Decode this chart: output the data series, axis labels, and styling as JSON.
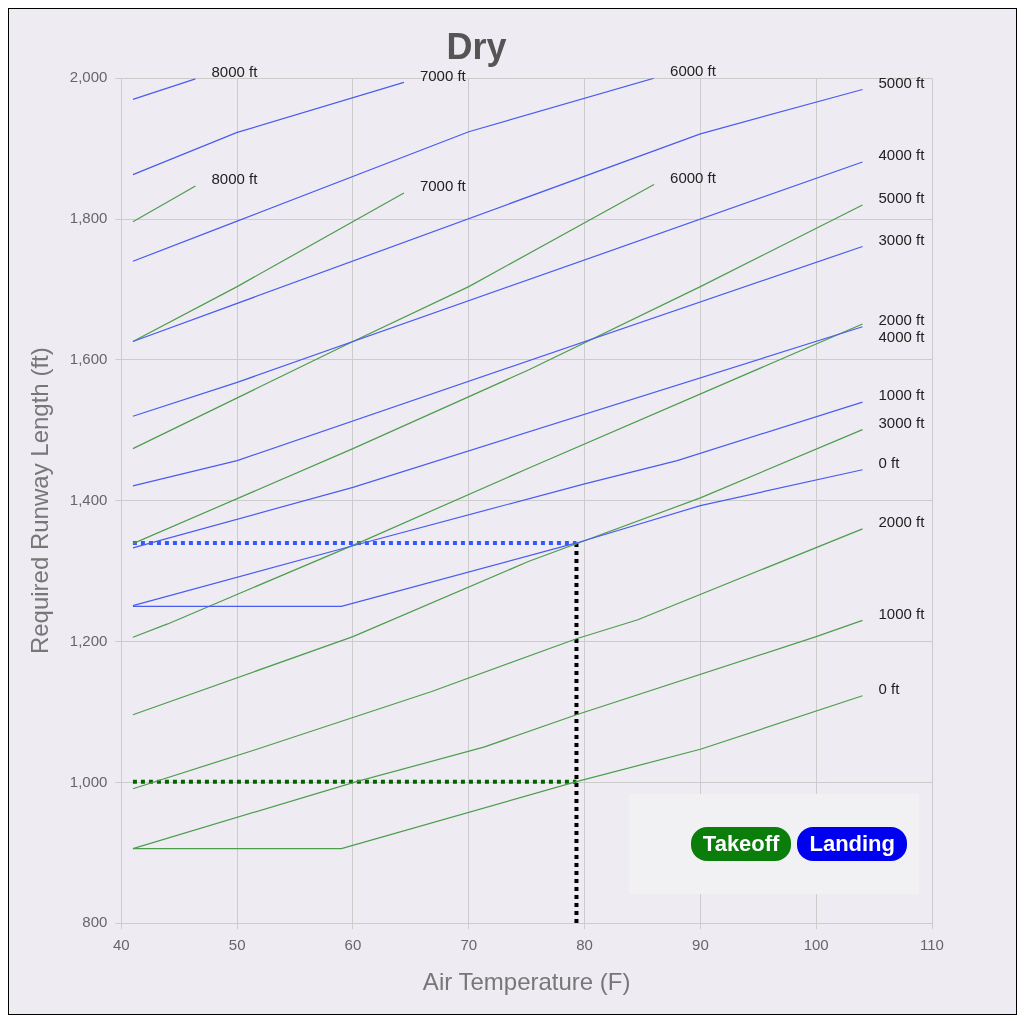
{
  "chart_data": {
    "type": "line",
    "title": "Dry",
    "xlabel": "Air Temperature (F)",
    "ylabel": "Required Runway Length (ft)",
    "xlim": [
      40,
      110
    ],
    "xticks": [
      40,
      50,
      60,
      70,
      80,
      90,
      100,
      110
    ],
    "ylim": [
      800,
      2000
    ],
    "yticks": [
      800,
      {
        "value": 1000,
        "label": "1,000"
      },
      {
        "value": 1200,
        "label": "1,200"
      },
      {
        "value": 1400,
        "label": "1,400"
      },
      {
        "value": 1600,
        "label": "1,600"
      },
      {
        "value": 1800,
        "label": "1,800"
      },
      {
        "value": 2000,
        "label": "2,000"
      }
    ],
    "grid": true,
    "line_style": "solid",
    "marker": "none",
    "annotations": [
      "Takeoff",
      "Landing"
    ],
    "series": [
      {
        "name": "8000 ft",
        "color": "#4a5cf0",
        "x": [
          41,
          46.4
        ],
        "values": [
          1970,
          1999
        ]
      },
      {
        "name": "7000 ft",
        "color": "#4a5cf0",
        "x": [
          41,
          50,
          64.4
        ],
        "values": [
          1863,
          1923,
          1994
        ]
      },
      {
        "name": "6000 ft",
        "color": "#4a5cf0",
        "x": [
          41,
          50,
          70,
          86
        ],
        "values": [
          1740,
          1797,
          1924,
          2000
        ]
      },
      {
        "name": "5000 ft",
        "color": "#4a5cf0",
        "x": [
          41,
          90,
          104
        ],
        "values": [
          1626,
          1921,
          1984
        ]
      },
      {
        "name": "4000 ft",
        "color": "#4a5cf0",
        "x": [
          41,
          50,
          104
        ],
        "values": [
          1520,
          1568,
          1881
        ]
      },
      {
        "name": "3000 ft",
        "color": "#4a5cf0",
        "x": [
          41,
          50,
          104
        ],
        "values": [
          1421,
          1457,
          1761
        ]
      },
      {
        "name": "2000 ft",
        "color": "#4a5cf0",
        "x": [
          41,
          60,
          104
        ],
        "values": [
          1333,
          1419,
          1647
        ]
      },
      {
        "name": "1000 ft",
        "color": "#4a5cf0",
        "x": [
          41,
          60,
          80,
          88,
          104
        ],
        "values": [
          1251,
          1336,
          1424,
          1457,
          1540
        ]
      },
      {
        "name": "0 ft",
        "color": "#4a5cf0",
        "x": [
          41,
          59,
          79.3,
          90,
          104
        ],
        "values": [
          1250,
          1250,
          1340,
          1393,
          1444
        ]
      },
      {
        "name": "8000 ft",
        "color": "#4c9e4c",
        "x": [
          41,
          46.4
        ],
        "values": [
          1796,
          1847
        ]
      },
      {
        "name": "7000 ft",
        "color": "#4c9e4c",
        "x": [
          41,
          50,
          64.4
        ],
        "values": [
          1626,
          1704,
          1837
        ]
      },
      {
        "name": "6000 ft",
        "color": "#4c9e4c",
        "x": [
          41,
          60,
          70,
          86
        ],
        "values": [
          1474,
          1626,
          1704,
          1849
        ]
      },
      {
        "name": "5000 ft",
        "color": "#4c9e4c",
        "x": [
          41,
          60,
          75.2,
          90,
          104
        ],
        "values": [
          1339,
          1474,
          1586,
          1704,
          1820
        ]
      },
      {
        "name": "4000 ft",
        "color": "#4c9e4c",
        "x": [
          41,
          44,
          60.9,
          75,
          104
        ],
        "values": [
          1206,
          1225,
          1343,
          1445,
          1651
        ]
      },
      {
        "name": "3000 ft",
        "color": "#4c9e4c",
        "x": [
          41,
          60,
          75.2,
          90,
          104
        ],
        "values": [
          1096,
          1207,
          1314,
          1404,
          1501
        ]
      },
      {
        "name": "2000 ft",
        "color": "#4c9e4c",
        "x": [
          41,
          51.5,
          66.8,
          79.3,
          84.6,
          104
        ],
        "values": [
          991,
          1046,
          1129,
          1204,
          1231,
          1360
        ]
      },
      {
        "name": "1000 ft",
        "color": "#4c9e4c",
        "x": [
          41,
          60.3,
          71.3,
          79.3,
          100,
          104
        ],
        "values": [
          906,
          1001,
          1050,
          1096,
          1207,
          1230
        ]
      },
      {
        "name": "0 ft",
        "color": "#4c9e4c",
        "x": [
          41,
          59,
          79.3,
          90,
          104
        ],
        "values": [
          906,
          906,
          1001,
          1047,
          1123
        ]
      },
      {
        "color": "#2f5bff",
        "line_style": "dotted",
        "x": [
          41,
          79.3
        ],
        "values": [
          1340,
          1340
        ]
      },
      {
        "color": "#006400",
        "line_style": "dotted",
        "x": [
          41,
          79.3
        ],
        "values": [
          1001,
          1001
        ]
      },
      {
        "color": "#000000",
        "line_style": "dotted",
        "x": [
          79.3,
          79.3
        ],
        "values": [
          1340,
          800
        ]
      }
    ]
  }
}
